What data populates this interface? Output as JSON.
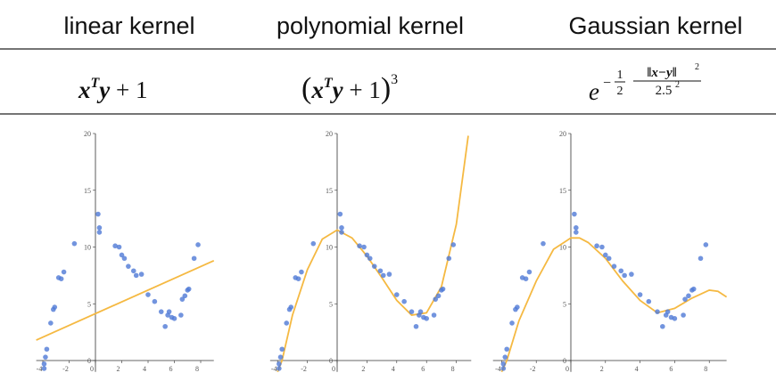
{
  "table": {
    "headers": [
      "linear kernel",
      "polynomial kernel",
      "Gaussian kernel"
    ],
    "formulas": [
      [
        "x",
        "T",
        "y",
        " + 1"
      ],
      [
        "(",
        "x",
        "T",
        "y",
        " + 1",
        ")",
        "3"
      ],
      [
        "e",
        "−",
        "1",
        "2",
        "‖x−y‖",
        "2",
        "2.5",
        "2"
      ]
    ]
  },
  "chart_data": [
    {
      "type": "scatter",
      "xlim": [
        -4.5,
        9
      ],
      "ylim": [
        -1,
        20
      ],
      "xticks": [
        -4,
        -2,
        0,
        2,
        4,
        6,
        8
      ],
      "yticks": [
        0,
        5,
        10,
        15,
        20
      ],
      "points": {
        "color": "#4f79d6",
        "x": [
          -3.9,
          -3.9,
          -3.8,
          -3.7,
          -3.4,
          -3.2,
          -3.1,
          -2.8,
          -2.6,
          -2.4,
          -1.6,
          0.2,
          0.3,
          0.3,
          1.5,
          1.8,
          2,
          2.2,
          2.5,
          2.9,
          3.1,
          3.5,
          4,
          4.5,
          5,
          5.3,
          5.5,
          5.6,
          5.8,
          6,
          6.5,
          6.6,
          6.8,
          7,
          7.1,
          7.5,
          7.8
        ],
        "y": [
          -0.3,
          -0.7,
          0.3,
          1,
          3.3,
          4.5,
          4.7,
          7.3,
          7.2,
          7.8,
          10.3,
          12.9,
          11.7,
          11.3,
          10.1,
          10,
          9.3,
          9,
          8.3,
          7.9,
          7.5,
          7.6,
          5.8,
          5.2,
          4.3,
          3,
          4,
          4.3,
          3.8,
          3.7,
          4,
          5.4,
          5.7,
          6.2,
          6.3,
          9,
          10.2
        ]
      },
      "curve": {
        "color": "#f5b942",
        "x": [
          -4.5,
          9
        ],
        "y": [
          1.8,
          8.8
        ]
      }
    },
    {
      "type": "scatter",
      "xlim": [
        -4.5,
        9
      ],
      "ylim": [
        -1,
        20
      ],
      "xticks": [
        -4,
        -2,
        0,
        2,
        4,
        6,
        8
      ],
      "yticks": [
        0,
        5,
        10,
        15,
        20
      ],
      "points": {
        "color": "#4f79d6",
        "x": [
          -3.9,
          -3.9,
          -3.8,
          -3.7,
          -3.4,
          -3.2,
          -3.1,
          -2.8,
          -2.6,
          -2.4,
          -1.6,
          0.2,
          0.3,
          0.3,
          1.5,
          1.8,
          2,
          2.2,
          2.5,
          2.9,
          3.1,
          3.5,
          4,
          4.5,
          5,
          5.3,
          5.5,
          5.6,
          5.8,
          6,
          6.5,
          6.6,
          6.8,
          7,
          7.1,
          7.5,
          7.8
        ],
        "y": [
          -0.3,
          -0.7,
          0.3,
          1,
          3.3,
          4.5,
          4.7,
          7.3,
          7.2,
          7.8,
          10.3,
          12.9,
          11.7,
          11.3,
          10.1,
          10,
          9.3,
          9,
          8.3,
          7.9,
          7.5,
          7.6,
          5.8,
          5.2,
          4.3,
          3,
          4,
          4.3,
          3.8,
          3.7,
          4,
          5.4,
          5.7,
          6.2,
          6.3,
          9,
          10.2
        ]
      },
      "curve": {
        "color": "#f5b942",
        "x": [
          -4,
          -3.7,
          -3,
          -2,
          -1,
          0,
          1,
          2,
          3,
          4,
          5,
          6,
          7,
          8,
          8.8
        ],
        "y": [
          -1,
          0,
          4,
          8,
          10.7,
          11.5,
          10.8,
          9.2,
          7.3,
          5.3,
          4,
          4.2,
          6.5,
          12,
          19.8
        ]
      }
    },
    {
      "type": "scatter",
      "xlim": [
        -4.5,
        9
      ],
      "ylim": [
        -1,
        20
      ],
      "xticks": [
        -4,
        -2,
        0,
        2,
        4,
        6,
        8
      ],
      "yticks": [
        0,
        5,
        10,
        15,
        20
      ],
      "points": {
        "color": "#4f79d6",
        "x": [
          -3.9,
          -3.9,
          -3.8,
          -3.7,
          -3.4,
          -3.2,
          -3.1,
          -2.8,
          -2.6,
          -2.4,
          -1.6,
          0.2,
          0.3,
          0.3,
          1.5,
          1.8,
          2,
          2.2,
          2.5,
          2.9,
          3.1,
          3.5,
          4,
          4.5,
          5,
          5.3,
          5.5,
          5.6,
          5.8,
          6,
          6.5,
          6.6,
          6.8,
          7,
          7.1,
          7.5,
          7.8
        ],
        "y": [
          -0.3,
          -0.7,
          0.3,
          1,
          3.3,
          4.5,
          4.7,
          7.3,
          7.2,
          7.8,
          10.3,
          12.9,
          11.7,
          11.3,
          10.1,
          10,
          9.3,
          9,
          8.3,
          7.9,
          7.5,
          7.6,
          5.8,
          5.2,
          4.3,
          3,
          4,
          4.3,
          3.8,
          3.7,
          4,
          5.4,
          5.7,
          6.2,
          6.3,
          9,
          10.2
        ]
      },
      "curve": {
        "color": "#f5b942",
        "x": [
          -4,
          -3.7,
          -3,
          -2,
          -1,
          0,
          0.5,
          1,
          2,
          3,
          4,
          5,
          6,
          7,
          8,
          8.5,
          9
        ],
        "y": [
          -1,
          0,
          3.5,
          7,
          9.8,
          10.8,
          10.8,
          10.4,
          9,
          7,
          5.3,
          4.2,
          4.6,
          5.5,
          6.2,
          6.1,
          5.6
        ]
      }
    }
  ]
}
